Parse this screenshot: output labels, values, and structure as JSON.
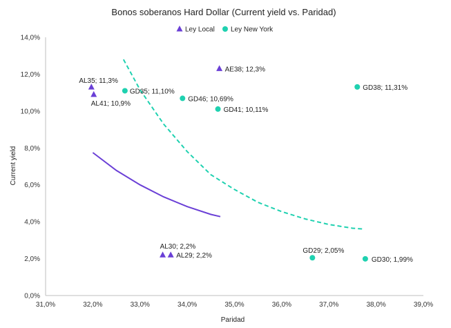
{
  "chart_data": {
    "type": "scatter",
    "title": "Bonos soberanos Hard Dollar (Current yield vs. Paridad)",
    "xlabel": "Paridad",
    "ylabel": "Current yield",
    "xlim": [
      0.31,
      0.39
    ],
    "ylim": [
      0.0,
      0.14
    ],
    "x_ticks": [
      "31,0%",
      "32,0%",
      "33,0%",
      "34,0%",
      "35,0%",
      "36,0%",
      "37,0%",
      "38,0%",
      "39,0%"
    ],
    "y_ticks": [
      "0,0%",
      "2,0%",
      "4,0%",
      "6,0%",
      "8,0%",
      "10,0%",
      "12,0%",
      "14,0%"
    ],
    "legend_position": "top",
    "series": [
      {
        "name": "Ley Local",
        "marker": "triangle",
        "color": "#6a3fd6",
        "points": [
          {
            "x": 0.3197,
            "y": 0.113,
            "label": "AL35; 11,3%"
          },
          {
            "x": 0.3202,
            "y": 0.109,
            "label": "AL41; 10,9%"
          },
          {
            "x": 0.3468,
            "y": 0.123,
            "label": "AE38; 12,3%"
          },
          {
            "x": 0.3348,
            "y": 0.022,
            "label": "AL30; 2,2%"
          },
          {
            "x": 0.3365,
            "y": 0.022,
            "label": "AL29; 2,2%"
          }
        ]
      },
      {
        "name": "Ley New York",
        "marker": "circle",
        "color": "#1fd1b0",
        "points": [
          {
            "x": 0.3268,
            "y": 0.111,
            "label": "GD35; 11,10%"
          },
          {
            "x": 0.339,
            "y": 0.1069,
            "label": "GD46; 10,69%"
          },
          {
            "x": 0.3465,
            "y": 0.1011,
            "label": "GD41; 10,11%"
          },
          {
            "x": 0.376,
            "y": 0.1131,
            "label": "GD38; 11,31%"
          },
          {
            "x": 0.3665,
            "y": 0.0205,
            "label": "GD29; 2,05%"
          },
          {
            "x": 0.3777,
            "y": 0.0199,
            "label": "GD30; 1,99%"
          }
        ]
      }
    ],
    "trendlines": [
      {
        "series": "Ley Local",
        "style": "solid",
        "color": "#6a3fd6",
        "points": [
          [
            0.32,
            0.0775
          ],
          [
            0.325,
            0.0678
          ],
          [
            0.33,
            0.06
          ],
          [
            0.335,
            0.0535
          ],
          [
            0.34,
            0.0482
          ],
          [
            0.345,
            0.044
          ],
          [
            0.347,
            0.0428
          ]
        ]
      },
      {
        "series": "Ley New York",
        "style": "dashed",
        "color": "#1fd1b0",
        "points": [
          [
            0.3265,
            0.128
          ],
          [
            0.33,
            0.1115
          ],
          [
            0.335,
            0.093
          ],
          [
            0.34,
            0.078
          ],
          [
            0.345,
            0.0655
          ],
          [
            0.35,
            0.0575
          ],
          [
            0.355,
            0.0505
          ],
          [
            0.36,
            0.0455
          ],
          [
            0.365,
            0.0415
          ],
          [
            0.37,
            0.0385
          ],
          [
            0.375,
            0.0365
          ],
          [
            0.3775,
            0.036
          ]
        ]
      }
    ],
    "grid": false
  }
}
